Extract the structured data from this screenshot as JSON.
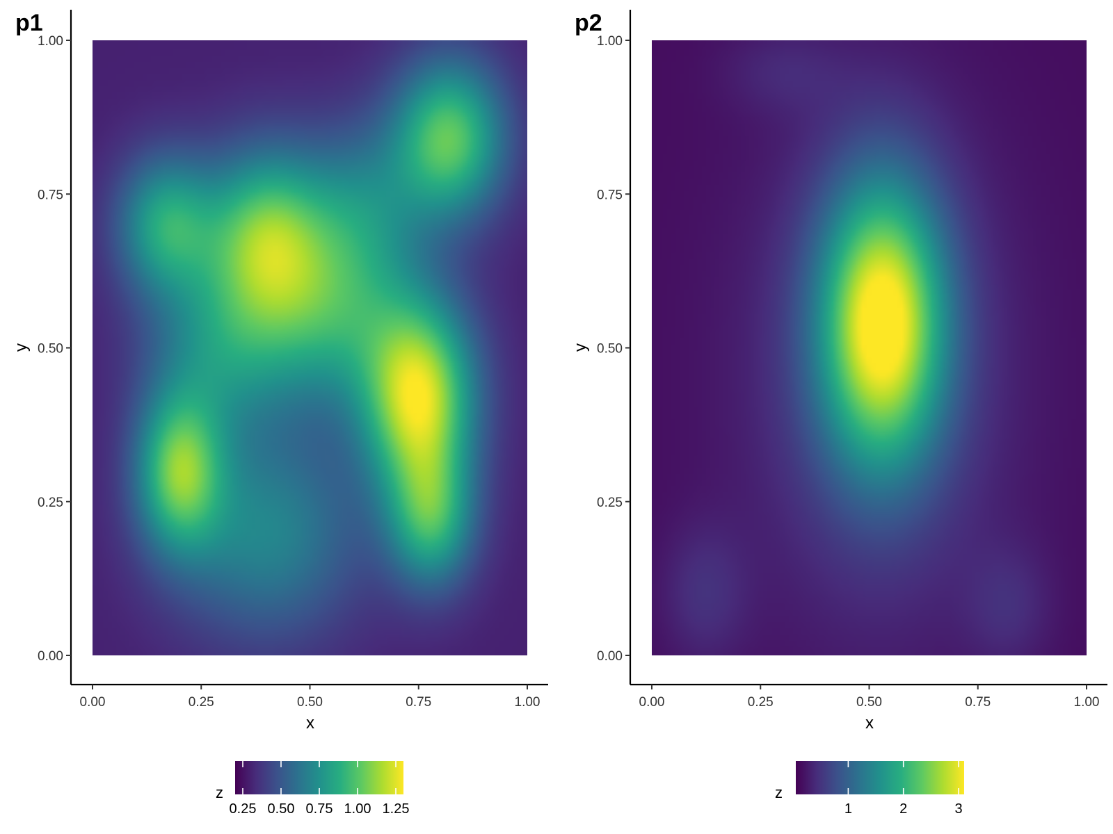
{
  "chart_data": [
    {
      "type": "heatmap",
      "tag": "p1",
      "xlabel": "x",
      "ylabel": "y",
      "xlim": [
        0,
        1
      ],
      "ylim": [
        0,
        1
      ],
      "x_ticks": [
        "0.00",
        "0.25",
        "0.50",
        "0.75",
        "1.00"
      ],
      "y_ticks": [
        "0.00",
        "0.25",
        "0.50",
        "0.75",
        "1.00"
      ],
      "colorscale": "viridis",
      "zlim": [
        0.2,
        1.3
      ],
      "legend": {
        "title": "z",
        "position": "bottom",
        "ticks": [
          0.25,
          0.5,
          0.75,
          1.0,
          1.25
        ],
        "tick_labels": [
          "0.25",
          "0.50",
          "0.75",
          "1.00",
          "1.25"
        ]
      },
      "surface": {
        "base": 0.3,
        "bumps": [
          {
            "x": 0.75,
            "y": 0.42,
            "sx": 0.09,
            "sy": 0.11,
            "z": 0.95
          },
          {
            "x": 0.4,
            "y": 0.68,
            "sx": 0.1,
            "sy": 0.1,
            "z": 0.72
          },
          {
            "x": 0.17,
            "y": 0.7,
            "sx": 0.08,
            "sy": 0.08,
            "z": 0.55
          },
          {
            "x": 0.82,
            "y": 0.84,
            "sx": 0.09,
            "sy": 0.09,
            "z": 0.72
          },
          {
            "x": 0.2,
            "y": 0.3,
            "sx": 0.07,
            "sy": 0.09,
            "z": 0.7
          },
          {
            "x": 0.78,
            "y": 0.22,
            "sx": 0.07,
            "sy": 0.08,
            "z": 0.55
          },
          {
            "x": 0.55,
            "y": 0.55,
            "sx": 0.12,
            "sy": 0.1,
            "z": 0.45
          },
          {
            "x": 0.4,
            "y": 0.2,
            "sx": 0.15,
            "sy": 0.12,
            "z": 0.4
          },
          {
            "x": 0.3,
            "y": 0.5,
            "sx": 0.12,
            "sy": 0.1,
            "z": 0.4
          },
          {
            "x": 0.62,
            "y": 0.72,
            "sx": 0.1,
            "sy": 0.1,
            "z": 0.35
          }
        ]
      }
    },
    {
      "type": "heatmap",
      "tag": "p2",
      "xlabel": "x",
      "ylabel": "y",
      "xlim": [
        0,
        1
      ],
      "ylim": [
        0,
        1
      ],
      "x_ticks": [
        "0.00",
        "0.25",
        "0.50",
        "0.75",
        "1.00"
      ],
      "y_ticks": [
        "0.00",
        "0.25",
        "0.50",
        "0.75",
        "1.00"
      ],
      "colorscale": "viridis",
      "zlim": [
        0.05,
        3.1
      ],
      "legend": {
        "title": "z",
        "position": "bottom",
        "ticks": [
          1,
          2,
          3
        ],
        "tick_labels": [
          "1",
          "2",
          "3"
        ]
      },
      "surface": {
        "base": 0.15,
        "bumps": [
          {
            "x": 0.53,
            "y": 0.54,
            "sx": 0.1,
            "sy": 0.16,
            "z": 2.85
          },
          {
            "x": 0.52,
            "y": 0.45,
            "sx": 0.22,
            "sy": 0.3,
            "z": 0.45
          },
          {
            "x": 0.12,
            "y": 0.1,
            "sx": 0.07,
            "sy": 0.08,
            "z": 0.3
          },
          {
            "x": 0.82,
            "y": 0.08,
            "sx": 0.07,
            "sy": 0.07,
            "z": 0.25
          },
          {
            "x": 0.3,
            "y": 0.95,
            "sx": 0.1,
            "sy": 0.05,
            "z": 0.2
          }
        ]
      }
    }
  ]
}
